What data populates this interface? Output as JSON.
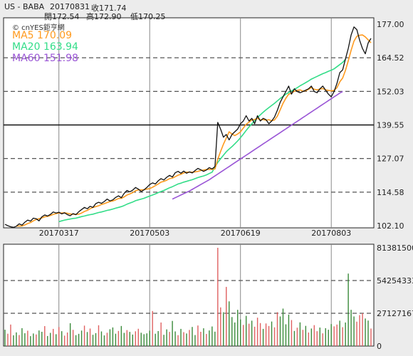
{
  "header": {
    "symbol": "US - BABA",
    "date": "20170831",
    "close_label": "收171.74",
    "open_label": "開172.54",
    "high_label": "高172.90",
    "low_label": "低170.25"
  },
  "logo_text": "© cnYES鉅亨網",
  "legend": [
    {
      "name": "MA5",
      "value": "170.09",
      "color": "#ff9a1e"
    },
    {
      "name": "MA20",
      "value": "163.94",
      "color": "#33dd88"
    },
    {
      "name": "MA60",
      "value": "151.98",
      "color": "#9a55d6"
    }
  ],
  "chart_data": [
    {
      "type": "line",
      "title": "",
      "price_ticks": [
        "177.00",
        "164.52",
        "152.03",
        "139.55",
        "127.07",
        "114.58",
        "102.10"
      ],
      "price_tick_values": [
        177.0,
        164.52,
        152.03,
        139.55,
        127.07,
        114.58,
        102.1
      ],
      "ylim": [
        102.1,
        177.0
      ],
      "reference_line": 139.55,
      "date_ticks": [
        {
          "label": "20170317",
          "index": 19
        },
        {
          "label": "20170503",
          "index": 51
        },
        {
          "label": "20170619",
          "index": 83
        },
        {
          "label": "20170803",
          "index": 115
        }
      ],
      "series": [
        {
          "name": "Close",
          "color": "#111111",
          "values": [
            102.6,
            102.1,
            101.7,
            101.5,
            101.9,
            102.8,
            102.3,
            103.4,
            104.2,
            103.8,
            104.9,
            104.7,
            103.9,
            105.4,
            106.1,
            105.7,
            106.3,
            107.2,
            106.8,
            107.1,
            106.5,
            106.9,
            106.2,
            105.8,
            106.6,
            106.2,
            107.3,
            108.1,
            108.9,
            108.4,
            109.3,
            108.9,
            110.3,
            110.8,
            110.4,
            111.1,
            112.0,
            111.3,
            111.7,
            112.6,
            113.2,
            112.5,
            114.1,
            115.2,
            114.7,
            115.3,
            116.3,
            115.7,
            114.8,
            115.4,
            116.3,
            117.4,
            118.0,
            117.6,
            118.8,
            119.6,
            119.1,
            120.1,
            120.8,
            120.2,
            121.8,
            122.3,
            121.6,
            122.4,
            121.6,
            122.1,
            121.7,
            122.6,
            123.4,
            122.9,
            122.3,
            122.8,
            123.7,
            123.2,
            124.1,
            140.5,
            138.0,
            135.0,
            136.0,
            134.0,
            136.0,
            137.0,
            138.0,
            140.0,
            141.0,
            143.0,
            141.0,
            142.0,
            140.0,
            143.0,
            141.0,
            142.0,
            141.5,
            140.0,
            141.0,
            142.5,
            145.0,
            148.0,
            150.0,
            152.0,
            154.0,
            151.0,
            153.0,
            152.0,
            151.5,
            152.0,
            152.5,
            153.0,
            154.0,
            152.0,
            151.5,
            153.0,
            154.0,
            152.5,
            151.0,
            150.0,
            152.0,
            155.0,
            159.0,
            160.0,
            164.0,
            168.0,
            173.0,
            176.0,
            175.0,
            171.0,
            168.0,
            166.0,
            170.0,
            171.74
          ]
        },
        {
          "name": "MA5",
          "color": "#ff9a1e",
          "values": [
            null,
            null,
            null,
            null,
            102.0,
            102.0,
            102.0,
            102.4,
            102.9,
            103.3,
            103.9,
            104.4,
            104.7,
            105.0,
            105.4,
            105.6,
            105.9,
            106.3,
            106.6,
            106.8,
            106.8,
            106.9,
            106.7,
            106.5,
            106.4,
            106.3,
            106.4,
            106.8,
            107.4,
            107.8,
            108.4,
            108.9,
            109.2,
            109.5,
            110.0,
            110.3,
            110.7,
            111.1,
            111.3,
            111.7,
            112.2,
            112.3,
            112.8,
            113.5,
            113.9,
            114.4,
            115.1,
            115.4,
            115.4,
            115.5,
            115.7,
            115.9,
            116.4,
            117.0,
            117.6,
            118.3,
            118.6,
            119.0,
            119.6,
            119.8,
            120.3,
            120.9,
            121.2,
            121.7,
            122.0,
            122.0,
            122.0,
            122.1,
            122.3,
            122.6,
            122.8,
            123.0,
            123.0,
            123.1,
            123.2,
            126.8,
            129.7,
            132.4,
            134.7,
            137.0,
            136.2,
            135.6,
            136.2,
            137.0,
            138.4,
            139.8,
            140.6,
            141.4,
            141.6,
            142.0,
            141.4,
            141.6,
            141.3,
            141.5,
            141.1,
            141.4,
            142.8,
            145.2,
            147.6,
            149.5,
            151.0,
            151.4,
            152.1,
            152.4,
            152.6,
            152.1,
            152.3,
            152.8,
            153.5,
            152.8,
            152.6,
            152.9,
            153.1,
            152.6,
            152.4,
            152.2,
            152.4,
            153.4,
            155.6,
            157.0,
            159.8,
            163.4,
            167.3,
            170.7,
            172.5,
            172.9,
            173.0,
            172.3,
            171.2,
            170.09
          ]
        },
        {
          "name": "MA20",
          "color": "#33dd88",
          "values": [
            null,
            null,
            null,
            null,
            null,
            null,
            null,
            null,
            null,
            null,
            null,
            null,
            null,
            null,
            null,
            null,
            null,
            null,
            null,
            103.6,
            103.9,
            104.2,
            104.4,
            104.6,
            104.8,
            104.9,
            105.2,
            105.5,
            105.7,
            106.0,
            106.2,
            106.4,
            106.7,
            107.0,
            107.2,
            107.5,
            107.8,
            108.0,
            108.3,
            108.6,
            108.9,
            109.2,
            109.6,
            110.1,
            110.5,
            110.9,
            111.4,
            111.7,
            112.0,
            112.3,
            112.7,
            113.1,
            113.5,
            113.9,
            114.4,
            114.8,
            115.2,
            115.7,
            116.2,
            116.6,
            117.1,
            117.6,
            117.9,
            118.3,
            118.6,
            118.9,
            119.2,
            119.6,
            120.0,
            120.3,
            120.6,
            121.0,
            121.5,
            122.0,
            124.0,
            125.6,
            127.0,
            128.3,
            129.6,
            130.6,
            131.5,
            132.5,
            133.6,
            134.8,
            136.1,
            137.5,
            138.8,
            140.0,
            141.1,
            142.3,
            143.3,
            144.3,
            145.2,
            146.0,
            146.8,
            147.6,
            148.5,
            149.4,
            150.2,
            151.0,
            151.6,
            152.2,
            152.8,
            153.4,
            154.1,
            154.7,
            155.3,
            155.9,
            156.6,
            157.1,
            157.6,
            158.1,
            158.6,
            159.0,
            159.5,
            159.9,
            160.4,
            161.2,
            162.0,
            162.8,
            163.94
          ]
        },
        {
          "name": "MA60",
          "color": "#9a55d6",
          "values": [
            null,
            null,
            null,
            null,
            null,
            null,
            null,
            null,
            null,
            null,
            null,
            null,
            null,
            null,
            null,
            null,
            null,
            null,
            null,
            null,
            null,
            null,
            null,
            null,
            null,
            null,
            null,
            null,
            null,
            null,
            null,
            null,
            null,
            null,
            null,
            null,
            null,
            null,
            null,
            null,
            null,
            null,
            null,
            null,
            null,
            null,
            null,
            null,
            null,
            null,
            null,
            null,
            null,
            null,
            null,
            null,
            null,
            null,
            null,
            112.0,
            112.5,
            113.0,
            113.5,
            114.0,
            114.5,
            115.0,
            115.6,
            116.2,
            116.8,
            117.4,
            118.0,
            118.6,
            119.2,
            119.9,
            120.6,
            121.3,
            122.0,
            122.7,
            123.4,
            124.1,
            124.8,
            125.5,
            126.2,
            126.9,
            127.6,
            128.3,
            129.0,
            129.7,
            130.4,
            131.1,
            131.8,
            132.5,
            133.2,
            133.9,
            134.6,
            135.3,
            136.0,
            136.7,
            137.4,
            138.1,
            138.8,
            139.5,
            140.2,
            140.9,
            141.6,
            142.3,
            143.0,
            143.7,
            144.4,
            145.1,
            145.8,
            146.5,
            147.2,
            147.9,
            148.6,
            149.3,
            150.0,
            150.7,
            151.4,
            151.98
          ]
        }
      ]
    },
    {
      "type": "bar",
      "title": "",
      "volume_ticks": [
        "81381500",
        "54254333",
        "27127167",
        "0"
      ],
      "volume_tick_values": [
        81381500,
        54254333,
        27127167,
        0
      ],
      "ylim": [
        0,
        81381500
      ],
      "up_color": "#3a8a3a",
      "down_color": "#e06060",
      "values": [
        13500000,
        10200000,
        17800000,
        8900000,
        11300000,
        9100000,
        14800000,
        10600000,
        12700000,
        8200000,
        10400000,
        9600000,
        12900000,
        11800000,
        16500000,
        8300000,
        10900000,
        14200000,
        9800000,
        15700000,
        12300000,
        8600000,
        11200000,
        18900000,
        13400000,
        9000000,
        10100000,
        12800000,
        16900000,
        11600000,
        14500000,
        9300000,
        10700000,
        17200000,
        12100000,
        8800000,
        11000000,
        13900000,
        15400000,
        10200000,
        12500000,
        16600000,
        10900000,
        13200000,
        11700000,
        9500000,
        12200000,
        14300000,
        11000000,
        9800000,
        10500000,
        12700000,
        29000000,
        10200000,
        12400000,
        19500000,
        9300000,
        13800000,
        11700000,
        20800000,
        12100000,
        9000000,
        14200000,
        11500000,
        10400000,
        13300000,
        15800000,
        9100000,
        17000000,
        11800000,
        14700000,
        10000000,
        12900000,
        16200000,
        11900000,
        81381500,
        32000000,
        28000000,
        49000000,
        37000000,
        24000000,
        19500000,
        30000000,
        22000000,
        17500000,
        25000000,
        18500000,
        21000000,
        16000000,
        23500000,
        19000000,
        14200000,
        18700000,
        16600000,
        20300000,
        15500000,
        28000000,
        24500000,
        31000000,
        18000000,
        26000000,
        21500000,
        12500000,
        15200000,
        19600000,
        13400000,
        16700000,
        11200000,
        14500000,
        17300000,
        12300000,
        15300000,
        10500000,
        14800000,
        13500000,
        18200000,
        16300000,
        17800000,
        21000000,
        15600000,
        19500000,
        60000000,
        30000000,
        24500000,
        20200000,
        25600000,
        27127167,
        22800000,
        21100000,
        14500000
      ],
      "up": [
        true,
        false,
        false,
        true,
        true,
        false,
        true,
        true,
        false,
        true,
        true,
        false,
        true,
        true,
        false,
        true,
        true,
        false,
        true,
        false,
        true,
        false,
        false,
        true,
        false,
        true,
        true,
        true,
        false,
        true,
        false,
        true,
        true,
        false,
        true,
        true,
        false,
        true,
        true,
        true,
        false,
        true,
        true,
        false,
        true,
        true,
        false,
        false,
        true,
        true,
        true,
        true,
        false,
        true,
        true,
        false,
        true,
        true,
        false,
        true,
        true,
        false,
        true,
        false,
        true,
        false,
        true,
        true,
        false,
        false,
        true,
        false,
        true,
        true,
        true,
        false,
        false,
        true,
        false,
        true,
        true,
        true,
        true,
        true,
        false,
        true,
        false,
        true,
        false,
        false,
        false,
        true,
        false,
        false,
        true,
        false,
        false,
        true,
        true,
        true,
        true,
        false,
        true,
        false,
        true,
        false,
        true,
        false,
        true,
        false,
        false,
        true,
        false,
        true,
        true,
        true,
        false,
        false,
        true,
        false,
        true,
        true,
        true,
        true,
        false,
        false,
        false,
        true,
        true,
        false,
        true
      ]
    }
  ]
}
